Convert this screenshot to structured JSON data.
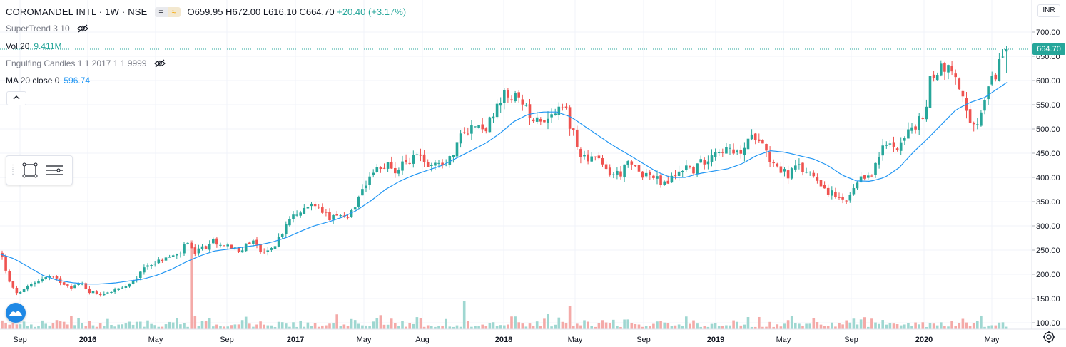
{
  "header": {
    "symbol_title": "COROMANDEL INTL · 1W · NSE",
    "badge_1": "=",
    "badge_2": "≈",
    "ohlc": {
      "o_label": "O",
      "o": "659.95",
      "h_label": "H",
      "h": "672.00",
      "l_label": "L",
      "l": "616.10",
      "c_label": "C",
      "c": "664.70",
      "change": "+20.40 (+3.17%)"
    }
  },
  "indicators": [
    {
      "name": "SuperTrend 3 10",
      "value": "",
      "hidden": true
    },
    {
      "name": "Vol 20",
      "value": "9.411M",
      "value_color": "#26a69a"
    },
    {
      "name": "Engulfing Candles 1 1 2017 1 1 9999",
      "value": "",
      "hidden": true
    },
    {
      "name": "MA 20 close 0",
      "value": "596.74",
      "value_color": "#2196f3"
    }
  ],
  "price_axis": {
    "currency": "INR",
    "last_price": "664.70",
    "last_price_color": "#26a69a"
  },
  "colors": {
    "up": "#26a69a",
    "down": "#ef5350",
    "volume_up": "#9fd7d1",
    "volume_down": "#f4aaa8",
    "ma": "#2196f3",
    "grid": "#f0f3fa"
  },
  "chart_data": {
    "type": "candlestick",
    "interval": "1W",
    "exchange": "NSE",
    "ylim": [
      90,
      720
    ],
    "y_ticks": [
      "100.00",
      "150.00",
      "200.00",
      "250.00",
      "300.00",
      "350.00",
      "400.00",
      "450.00",
      "500.00",
      "550.00",
      "600.00",
      "650.00",
      "700.00"
    ],
    "x_ticks": [
      "Sep",
      "2016",
      "May",
      "Sep",
      "2017",
      "May",
      "Aug",
      "2018",
      "May",
      "Sep",
      "2019",
      "May",
      "Sep",
      "2020",
      "May"
    ],
    "grid": true,
    "last": {
      "open": 659.95,
      "high": 672.0,
      "low": 616.1,
      "close": 664.7,
      "change": 20.4,
      "change_pct": 3.17
    },
    "ma_period": 20,
    "ma_last": 596.74,
    "volume_last": "9.411M",
    "close_path": [
      [
        0,
        245
      ],
      [
        6,
        225
      ],
      [
        12,
        185
      ],
      [
        20,
        165
      ],
      [
        30,
        160
      ],
      [
        40,
        175
      ],
      [
        55,
        190
      ],
      [
        70,
        195
      ],
      [
        85,
        185
      ],
      [
        100,
        175
      ],
      [
        115,
        180
      ],
      [
        125,
        165
      ],
      [
        140,
        160
      ],
      [
        155,
        165
      ],
      [
        170,
        170
      ],
      [
        185,
        180
      ],
      [
        195,
        200
      ],
      [
        205,
        220
      ],
      [
        220,
        225
      ],
      [
        235,
        235
      ],
      [
        250,
        240
      ],
      [
        262,
        265
      ],
      [
        270,
        245
      ],
      [
        285,
        255
      ],
      [
        300,
        270
      ],
      [
        315,
        262
      ],
      [
        325,
        250
      ],
      [
        340,
        255
      ],
      [
        355,
        270
      ],
      [
        365,
        250
      ],
      [
        375,
        245
      ],
      [
        385,
        260
      ],
      [
        395,
        285
      ],
      [
        405,
        310
      ],
      [
        415,
        320
      ],
      [
        425,
        335
      ],
      [
        435,
        345
      ],
      [
        445,
        340
      ],
      [
        455,
        325
      ],
      [
        465,
        315
      ],
      [
        475,
        320
      ],
      [
        485,
        310
      ],
      [
        495,
        330
      ],
      [
        505,
        360
      ],
      [
        515,
        385
      ],
      [
        525,
        410
      ],
      [
        535,
        420
      ],
      [
        545,
        430
      ],
      [
        555,
        415
      ],
      [
        565,
        425
      ],
      [
        575,
        440
      ],
      [
        585,
        445
      ],
      [
        595,
        430
      ],
      [
        605,
        435
      ],
      [
        615,
        430
      ],
      [
        625,
        430
      ],
      [
        635,
        455
      ],
      [
        645,
        480
      ],
      [
        655,
        500
      ],
      [
        665,
        505
      ],
      [
        675,
        500
      ],
      [
        685,
        510
      ],
      [
        695,
        535
      ],
      [
        705,
        565
      ],
      [
        715,
        570
      ],
      [
        725,
        560
      ],
      [
        735,
        540
      ],
      [
        745,
        530
      ],
      [
        755,
        525
      ],
      [
        765,
        520
      ],
      [
        775,
        530
      ],
      [
        785,
        535
      ],
      [
        795,
        530
      ],
      [
        800,
        505
      ],
      [
        810,
        455
      ],
      [
        820,
        445
      ],
      [
        830,
        440
      ],
      [
        840,
        430
      ],
      [
        850,
        415
      ],
      [
        860,
        405
      ],
      [
        870,
        410
      ],
      [
        880,
        425
      ],
      [
        890,
        420
      ],
      [
        900,
        410
      ],
      [
        910,
        405
      ],
      [
        920,
        395
      ],
      [
        930,
        385
      ],
      [
        940,
        395
      ],
      [
        950,
        410
      ],
      [
        960,
        425
      ],
      [
        970,
        415
      ],
      [
        980,
        425
      ],
      [
        990,
        440
      ],
      [
        1000,
        455
      ],
      [
        1010,
        460
      ],
      [
        1020,
        455
      ],
      [
        1030,
        445
      ],
      [
        1040,
        455
      ],
      [
        1050,
        475
      ],
      [
        1060,
        490
      ],
      [
        1070,
        480
      ],
      [
        1075,
        445
      ],
      [
        1085,
        430
      ],
      [
        1095,
        415
      ],
      [
        1105,
        405
      ],
      [
        1115,
        420
      ],
      [
        1125,
        415
      ],
      [
        1135,
        410
      ],
      [
        1145,
        400
      ],
      [
        1155,
        380
      ],
      [
        1165,
        365
      ],
      [
        1175,
        355
      ],
      [
        1185,
        345
      ],
      [
        1195,
        370
      ],
      [
        1205,
        390
      ],
      [
        1215,
        405
      ],
      [
        1225,
        415
      ],
      [
        1235,
        455
      ],
      [
        1245,
        470
      ],
      [
        1255,
        465
      ],
      [
        1265,
        480
      ],
      [
        1275,
        495
      ],
      [
        1285,
        510
      ],
      [
        1295,
        525
      ],
      [
        1305,
        610
      ],
      [
        1315,
        625
      ],
      [
        1325,
        630
      ],
      [
        1335,
        615
      ],
      [
        1345,
        590
      ],
      [
        1352,
        545
      ],
      [
        1358,
        510
      ],
      [
        1365,
        500
      ],
      [
        1375,
        530
      ],
      [
        1385,
        575
      ],
      [
        1395,
        615
      ],
      [
        1405,
        650
      ],
      [
        1412,
        664.7
      ]
    ],
    "ma_path": [
      [
        0,
        242
      ],
      [
        20,
        232
      ],
      [
        40,
        215
      ],
      [
        60,
        198
      ],
      [
        80,
        188
      ],
      [
        100,
        183
      ],
      [
        120,
        180
      ],
      [
        140,
        180
      ],
      [
        160,
        182
      ],
      [
        180,
        186
      ],
      [
        200,
        190
      ],
      [
        220,
        198
      ],
      [
        240,
        210
      ],
      [
        260,
        225
      ],
      [
        280,
        238
      ],
      [
        300,
        248
      ],
      [
        320,
        252
      ],
      [
        340,
        256
      ],
      [
        360,
        260
      ],
      [
        380,
        266
      ],
      [
        400,
        275
      ],
      [
        420,
        288
      ],
      [
        440,
        300
      ],
      [
        460,
        308
      ],
      [
        480,
        318
      ],
      [
        500,
        332
      ],
      [
        520,
        352
      ],
      [
        540,
        375
      ],
      [
        560,
        392
      ],
      [
        580,
        405
      ],
      [
        600,
        415
      ],
      [
        620,
        425
      ],
      [
        640,
        440
      ],
      [
        660,
        455
      ],
      [
        680,
        470
      ],
      [
        700,
        490
      ],
      [
        720,
        515
      ],
      [
        740,
        530
      ],
      [
        760,
        535
      ],
      [
        780,
        535
      ],
      [
        800,
        525
      ],
      [
        820,
        505
      ],
      [
        840,
        485
      ],
      [
        860,
        465
      ],
      [
        880,
        448
      ],
      [
        900,
        430
      ],
      [
        920,
        412
      ],
      [
        940,
        400
      ],
      [
        960,
        400
      ],
      [
        980,
        408
      ],
      [
        1000,
        413
      ],
      [
        1020,
        418
      ],
      [
        1040,
        428
      ],
      [
        1060,
        445
      ],
      [
        1080,
        455
      ],
      [
        1100,
        452
      ],
      [
        1120,
        445
      ],
      [
        1140,
        438
      ],
      [
        1160,
        425
      ],
      [
        1180,
        405
      ],
      [
        1200,
        393
      ],
      [
        1220,
        392
      ],
      [
        1240,
        400
      ],
      [
        1260,
        420
      ],
      [
        1280,
        452
      ],
      [
        1300,
        480
      ],
      [
        1320,
        510
      ],
      [
        1340,
        540
      ],
      [
        1360,
        555
      ],
      [
        1380,
        565
      ],
      [
        1400,
        585
      ],
      [
        1412,
        596.74
      ]
    ],
    "volume_spikes": [
      {
        "x": 266,
        "value": 270,
        "direction": "down"
      },
      {
        "x": 650,
        "value": 145,
        "direction": "up"
      },
      {
        "x": 796,
        "value": 135,
        "direction": "down"
      },
      {
        "x": 1412,
        "value": 205,
        "direction": "up"
      }
    ]
  }
}
